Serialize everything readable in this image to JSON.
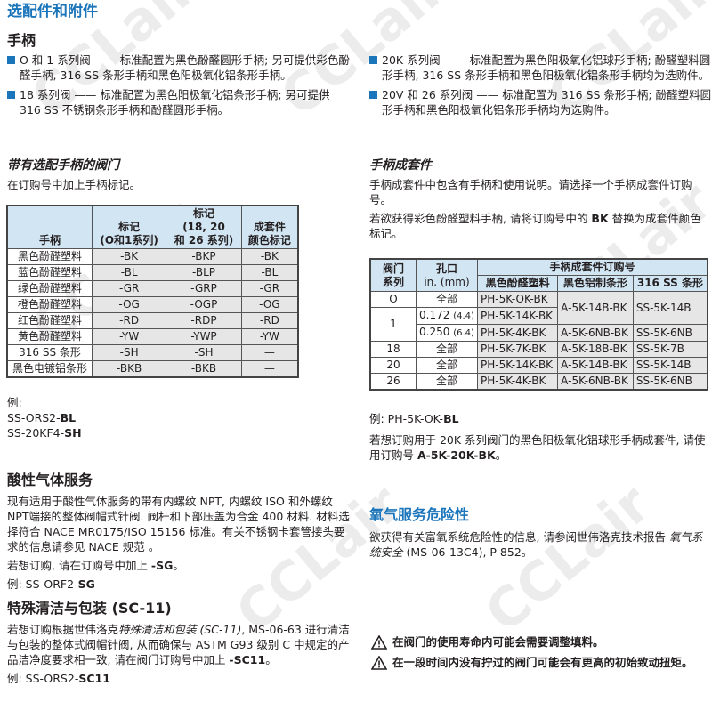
{
  "title": "选配件和附件",
  "watermark": "CCLair",
  "handles": {
    "heading": "手柄",
    "bullets_left": [
      "O 和 1 系列阀 —— 标准配置为黑色酚醛圆形手柄; 另可提供彩色酚醛手柄, 316 SS 条形手柄和黑色阳极氧化铝条形手柄。",
      "18 系列阀 —— 标准配置为黑色阳极氧化铝条形手柄; 另可提供 316 SS 不锈钢条形手柄和酚醛圆形手柄。"
    ],
    "bullets_right": [
      "20K 系列阀 —— 标准配置为黑色阳极氧化铝球形手柄; 酚醛塑料圆形手柄, 316 SS 条形手柄和黑色阳极氧化铝条形手柄均为选购件。",
      "20V 和 26 系列阀 —— 标准配置为 316 SS 条形手柄; 酚醛塑料圆形手柄和黑色阳极氧化铝条形手柄均为选购件。"
    ]
  },
  "optional_handles": {
    "heading": "带有选配手柄的阀门",
    "text": "在订购号中加上手柄标记。",
    "table": {
      "headers": [
        "手柄",
        "标记\n(O和1系列)",
        "标记\n(18, 20\n和 26 系列)",
        "成套件\n颜色标记"
      ],
      "rows": [
        [
          "黑色酚醛塑料",
          "-BK",
          "-BKP",
          "-BK"
        ],
        [
          "蓝色酚醛塑料",
          "-BL",
          "-BLP",
          "-BL"
        ],
        [
          "绿色酚醛塑料",
          "-GR",
          "-GRP",
          "-GR"
        ],
        [
          "橙色酚醛塑料",
          "-OG",
          "-OGP",
          "-OG"
        ],
        [
          "红色酚醛塑料",
          "-RD",
          "-RDP",
          "-RD"
        ],
        [
          "黄色酚醛塑料",
          "-YW",
          "-YWP",
          "-YW"
        ],
        [
          "316 SS 条形",
          "-SH",
          "-SH",
          "—"
        ],
        [
          "黑色电镀铝条形",
          "-BKB",
          "-BKB",
          "—"
        ]
      ]
    },
    "example_label": "例:",
    "examples": [
      {
        "prefix": "SS-ORS2-",
        "bold": "BL"
      },
      {
        "prefix": "SS-20KF4-",
        "bold": "SH"
      }
    ]
  },
  "handle_kits": {
    "heading": "手柄成套件",
    "text1": "手柄成套件中包含有手柄和使用说明。请选择一个手柄成套件订购号。",
    "text2_a": "若欲获得彩色酚醛塑料手柄, 请将订购号中的 ",
    "text2_b": "BK",
    "text2_c": " 替换为成套件颜色标记。",
    "table": {
      "h_series": "阀门\n系列",
      "h_orifice": "孔口",
      "h_orifice_unit": "in. (mm)",
      "h_group": "手柄成套件订购号",
      "h_cols": [
        "黑色酚醛塑料",
        "黑色铝制条形",
        "316 SS 条形"
      ],
      "rows": [
        {
          "series": "O",
          "orifice": "全部",
          "orifice_mm": "",
          "c1": "PH-5K-OK-BK",
          "c2": "A-5K-14B-BK",
          "c3": "SS-5K-14B"
        },
        {
          "series": "1",
          "orifice": "0.172",
          "orifice_mm": "(4.4)",
          "c1": "PH-5K-14K-BK"
        },
        {
          "orifice": "0.250",
          "orifice_mm": "(6.4)",
          "c1": "PH-5K-4K-BK",
          "c2": "A-5K-6NB-BK",
          "c3": "SS-5K-6NB"
        },
        {
          "series": "18",
          "orifice": "全部",
          "c1": "PH-5K-7K-BK",
          "c2": "A-5K-18B-BK",
          "c3": "SS-5K-7B"
        },
        {
          "series": "20",
          "orifice": "全部",
          "c1": "PH-5K-14K-BK",
          "c2": "A-5K-14B-BK",
          "c3": "SS-5K-14B"
        },
        {
          "series": "26",
          "orifice": "全部",
          "c1": "PH-5K-4K-BK",
          "c2": "A-5K-6NB-BK",
          "c3": "SS-5K-6NB"
        }
      ]
    },
    "example_prefix": "例: PH-5K-OK-",
    "example_bold": "BL",
    "text3_a": "若想订购用于 20K 系列阀门的黑色阳极氧化铝球形手柄成套件, 请使用订购号 ",
    "text3_b": "A-5K-20K-BK",
    "text3_c": "。"
  },
  "sour_gas": {
    "heading": "酸性气体服务",
    "text": "现有适用于酸性气体服务的带有内螺纹 NPT, 内螺纹  ISO 和外螺纹 NPT端接的整体阀帽式针阀. 阀杆和下部压盖为合金 400 材料. 材料选择符合 NACE MR0175/ISO 15156 标准。有关不锈钢卡套管接头要求的信息请参见 NACE 规范 。",
    "order_a": "若想订购, 请在订购号中加上 ",
    "order_b": "-SG",
    "order_c": "。",
    "example_prefix": "例: SS-ORF2-",
    "example_bold": "SG"
  },
  "special_cleaning": {
    "heading": "特殊清洁与包装 (SC-11)",
    "text_a": "若想订购根据世伟洛克",
    "text_italic": "特殊清洁和包装 (SC-11)",
    "text_b": ", MS-06-63 进行清洁与包装的整体式阀帽针阀, 从而确保与 ASTM G93 级别 C 中规定的产品洁净度要求相一致, 请在阀门订购号中加上 ",
    "text_bold": "-SC11",
    "text_c": "。",
    "example_prefix": "例: SS-ORS2-",
    "example_bold": "SC11"
  },
  "oxygen": {
    "heading": "氧气服务危险性",
    "text_a": "欲获得有关富氧系统危险性的信息, 请参阅世伟洛克技术报告 ",
    "text_italic": "氧气系统安全",
    "text_b": " (MS-06-13C4), P 852。"
  },
  "warnings": [
    "在阀门的使用寿命内可能会需要调整填料。",
    "在一段时间内没有拧过的阀门可能会有更高的初始致动扭矩。"
  ],
  "colors": {
    "accent": "#1a75bb",
    "table_header": "#d2e5f3",
    "table_cell": "#e6e6e6"
  }
}
